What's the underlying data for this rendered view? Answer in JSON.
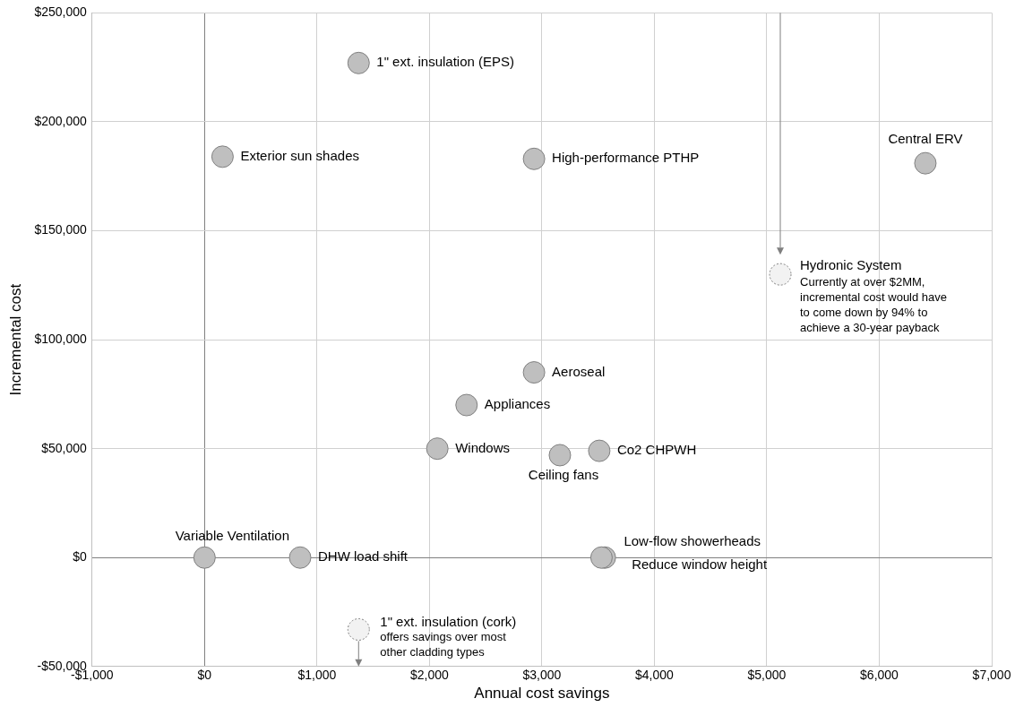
{
  "chart_data": {
    "type": "scatter",
    "xlabel": "Annual cost savings",
    "ylabel": "Incremental cost",
    "xlim": [
      -1000,
      7000
    ],
    "ylim": [
      -50000,
      250000
    ],
    "xticks": [
      {
        "value": -1000,
        "label": "-$1,000"
      },
      {
        "value": 0,
        "label": "$0"
      },
      {
        "value": 1000,
        "label": "$1,000"
      },
      {
        "value": 2000,
        "label": "$2,000"
      },
      {
        "value": 3000,
        "label": "$3,000"
      },
      {
        "value": 4000,
        "label": "$4,000"
      },
      {
        "value": 5000,
        "label": "$5,000"
      },
      {
        "value": 6000,
        "label": "$6,000"
      },
      {
        "value": 7000,
        "label": "$7,000"
      }
    ],
    "yticks": [
      {
        "value": -50000,
        "label": "-$50,000"
      },
      {
        "value": 0,
        "label": "$0"
      },
      {
        "value": 50000,
        "label": "$50,000"
      },
      {
        "value": 100000,
        "label": "$100,000"
      },
      {
        "value": 150000,
        "label": "$150,000"
      },
      {
        "value": 200000,
        "label": "$200,000"
      },
      {
        "value": 250000,
        "label": "$250,000"
      }
    ],
    "grid": true,
    "legend": false,
    "marker": "circle",
    "series": [
      {
        "name": "1\" ext. insulation (EPS)",
        "color": "#bfbfbf",
        "x": [
          1370
        ],
        "values": [
          227000
        ]
      },
      {
        "name": "Exterior sun shades",
        "color": "#bfbfbf",
        "x": [
          160
        ],
        "values": [
          184000
        ]
      },
      {
        "name": "High-performance PTHP",
        "color": "#bfbfbf",
        "x": [
          2930
        ],
        "values": [
          183000
        ]
      },
      {
        "name": "Central ERV",
        "color": "#bfbfbf",
        "x": [
          6410
        ],
        "values": [
          181000
        ]
      },
      {
        "name": "Hydronic System",
        "color": "#f2f2f2",
        "line_style": "dotted",
        "x": [
          5120
        ],
        "values": [
          130000
        ]
      },
      {
        "name": "Aeroseal",
        "color": "#bfbfbf",
        "x": [
          2930
        ],
        "values": [
          85000
        ]
      },
      {
        "name": "Appliances",
        "color": "#bfbfbf",
        "x": [
          2330
        ],
        "values": [
          70000
        ]
      },
      {
        "name": "Windows",
        "color": "#bfbfbf",
        "x": [
          2070
        ],
        "values": [
          50000
        ]
      },
      {
        "name": "Ceiling fans",
        "color": "#bfbfbf",
        "x": [
          3160
        ],
        "values": [
          47000
        ]
      },
      {
        "name": "Co2 CHPWH",
        "color": "#bfbfbf",
        "x": [
          3510
        ],
        "values": [
          49000
        ]
      },
      {
        "name": "Variable Ventilation",
        "color": "#bfbfbf",
        "x": [
          0
        ],
        "values": [
          0
        ]
      },
      {
        "name": "DHW load shift",
        "color": "#bfbfbf",
        "x": [
          850
        ],
        "values": [
          0
        ]
      },
      {
        "name": "Low-flow showerheads",
        "color": "#bfbfbf",
        "x": [
          3530
        ],
        "values": [
          0
        ]
      },
      {
        "name": "Reduce window height",
        "color": "#bfbfbf",
        "x": [
          3560
        ],
        "values": [
          0
        ]
      },
      {
        "name": "1\" ext. insulation (cork)",
        "color": "#f2f2f2",
        "line_style": "dotted",
        "x": [
          1370
        ],
        "values": [
          -33000
        ]
      }
    ],
    "annotations": [
      {
        "text": "Currently at over $2MM, incremental cost would have to come down by 94% to achieve a 30-year payback",
        "x": 5120,
        "y": 130000
      },
      {
        "text": "offers savings over most other cladding types",
        "x": 1370,
        "y": -33000
      }
    ]
  }
}
